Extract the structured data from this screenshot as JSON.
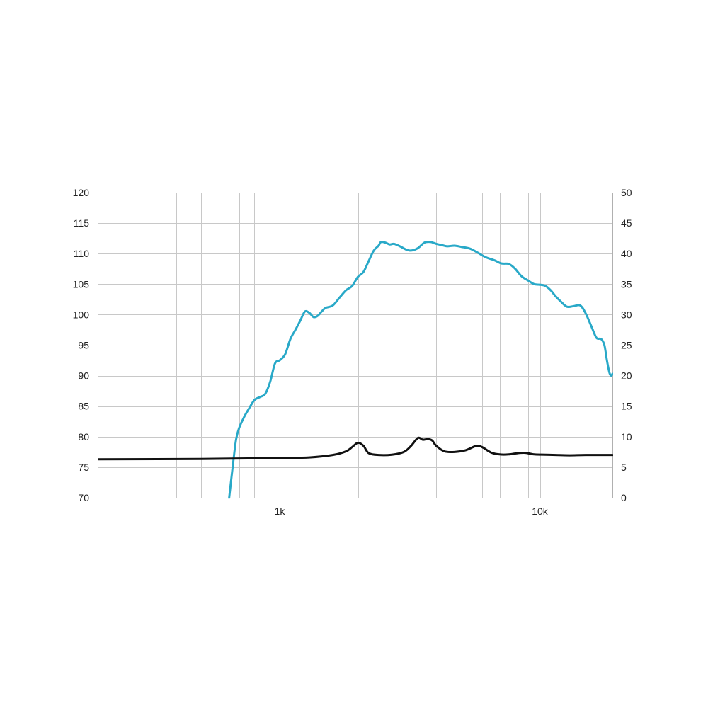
{
  "chart_data": {
    "type": "line",
    "title": "",
    "xlabel": "",
    "ylabel": "",
    "y2label": "",
    "x_scale": "log",
    "xlim": [
      200,
      19000
    ],
    "ylim": [
      70,
      120
    ],
    "y2lim": [
      0,
      50
    ],
    "grid": true,
    "legend": "none",
    "x_tick_labels": [
      {
        "value": 1000,
        "label": "1k"
      },
      {
        "value": 10000,
        "label": "10k"
      }
    ],
    "y_ticks": [
      "70",
      "75",
      "80",
      "85",
      "90",
      "95",
      "100",
      "105",
      "110",
      "115",
      "120"
    ],
    "y2_ticks": [
      "0",
      "5",
      "10",
      "15",
      "20",
      "25",
      "30",
      "35",
      "40",
      "45",
      "50"
    ],
    "series": [
      {
        "axis": "left",
        "color": "#29a9c8",
        "points": [
          [
            640,
            70
          ],
          [
            660,
            75
          ],
          [
            680,
            79.5
          ],
          [
            700,
            81.5
          ],
          [
            730,
            83.2
          ],
          [
            760,
            84.5
          ],
          [
            800,
            86
          ],
          [
            840,
            86.5
          ],
          [
            880,
            87
          ],
          [
            920,
            89
          ],
          [
            960,
            92
          ],
          [
            1000,
            92.5
          ],
          [
            1050,
            93.5
          ],
          [
            1100,
            96
          ],
          [
            1150,
            97.5
          ],
          [
            1200,
            99
          ],
          [
            1250,
            100.5
          ],
          [
            1300,
            100.3
          ],
          [
            1350,
            99.6
          ],
          [
            1400,
            99.8
          ],
          [
            1450,
            100.5
          ],
          [
            1500,
            101.1
          ],
          [
            1600,
            101.5
          ],
          [
            1700,
            102.8
          ],
          [
            1800,
            104
          ],
          [
            1900,
            104.7
          ],
          [
            2000,
            106.2
          ],
          [
            2100,
            107
          ],
          [
            2200,
            108.8
          ],
          [
            2300,
            110.5
          ],
          [
            2400,
            111.3
          ],
          [
            2450,
            111.9
          ],
          [
            2550,
            111.8
          ],
          [
            2650,
            111.5
          ],
          [
            2750,
            111.6
          ],
          [
            2900,
            111.2
          ],
          [
            3050,
            110.7
          ],
          [
            3200,
            110.5
          ],
          [
            3400,
            110.9
          ],
          [
            3600,
            111.8
          ],
          [
            3800,
            111.9
          ],
          [
            4000,
            111.6
          ],
          [
            4200,
            111.4
          ],
          [
            4400,
            111.2
          ],
          [
            4700,
            111.3
          ],
          [
            5000,
            111.1
          ],
          [
            5400,
            110.8
          ],
          [
            5800,
            110.1
          ],
          [
            6200,
            109.4
          ],
          [
            6700,
            108.9
          ],
          [
            7100,
            108.4
          ],
          [
            7600,
            108.3
          ],
          [
            8000,
            107.6
          ],
          [
            8500,
            106.3
          ],
          [
            9000,
            105.6
          ],
          [
            9500,
            105
          ],
          [
            10000,
            104.9
          ],
          [
            10500,
            104.7
          ],
          [
            11000,
            104
          ],
          [
            11500,
            103
          ],
          [
            12000,
            102.2
          ],
          [
            12700,
            101.3
          ],
          [
            13500,
            101.4
          ],
          [
            14300,
            101.5
          ],
          [
            15000,
            100.2
          ],
          [
            15800,
            98
          ],
          [
            16500,
            96.2
          ],
          [
            17200,
            96
          ],
          [
            17700,
            95
          ],
          [
            18100,
            92.5
          ],
          [
            18500,
            90.5
          ],
          [
            18800,
            90
          ],
          [
            19000,
            90.3
          ]
        ]
      },
      {
        "axis": "right",
        "color": "#111111",
        "points": [
          [
            200,
            6.3
          ],
          [
            500,
            6.35
          ],
          [
            1000,
            6.5
          ],
          [
            1300,
            6.6
          ],
          [
            1600,
            7.0
          ],
          [
            1800,
            7.6
          ],
          [
            1900,
            8.3
          ],
          [
            2000,
            9
          ],
          [
            2100,
            8.5
          ],
          [
            2200,
            7.3
          ],
          [
            2400,
            7.0
          ],
          [
            2700,
            7.05
          ],
          [
            3000,
            7.5
          ],
          [
            3200,
            8.5
          ],
          [
            3400,
            9.8
          ],
          [
            3550,
            9.5
          ],
          [
            3700,
            9.6
          ],
          [
            3850,
            9.4
          ],
          [
            4000,
            8.5
          ],
          [
            4300,
            7.6
          ],
          [
            4700,
            7.5
          ],
          [
            5200,
            7.8
          ],
          [
            5700,
            8.5
          ],
          [
            6000,
            8.3
          ],
          [
            6500,
            7.4
          ],
          [
            7000,
            7.1
          ],
          [
            7600,
            7.1
          ],
          [
            8200,
            7.3
          ],
          [
            8800,
            7.35
          ],
          [
            9500,
            7.1
          ],
          [
            10500,
            7.05
          ],
          [
            11500,
            7.0
          ],
          [
            13000,
            6.95
          ],
          [
            15000,
            7.0
          ],
          [
            19000,
            7.0
          ]
        ]
      }
    ]
  }
}
